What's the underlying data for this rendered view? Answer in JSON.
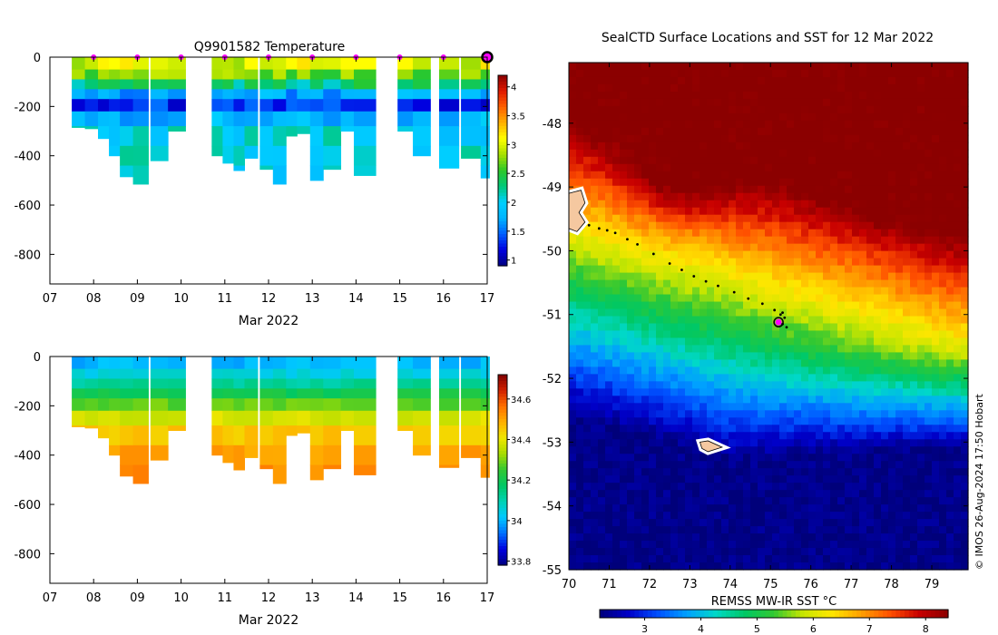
{
  "colors": {
    "sst_palette": [
      "#00007a",
      "#0000c8",
      "#0050ff",
      "#00a0ff",
      "#00d8c8",
      "#00c864",
      "#32c832",
      "#c8e600",
      "#ffe600",
      "#ffa000",
      "#ff5000",
      "#c80000",
      "#8b0000"
    ],
    "temp_palette": [
      "#000080",
      "#0000e0",
      "#0060ff",
      "#00b4ff",
      "#00d0ff",
      "#00c878",
      "#2cc828",
      "#a8e000",
      "#ffff00",
      "#ffb000",
      "#ff6000",
      "#e01800",
      "#8b0000"
    ],
    "sal_palette": [
      "#000080",
      "#0000e0",
      "#0070ff",
      "#00c8ff",
      "#00d2b4",
      "#00c864",
      "#32c832",
      "#a8dc00",
      "#f0e600",
      "#ffb000",
      "#ff7000",
      "#d02000",
      "#800000"
    ],
    "marker": "#ff00ff",
    "land": "#f5c8a0"
  },
  "chart_data": [
    {
      "id": "temperature_section",
      "type": "heatmap",
      "title": "Q9901582  Temperature",
      "xlabel": "Mar 2022",
      "ylabel": "",
      "x_ticks": [
        "07",
        "08",
        "09",
        "10",
        "11",
        "12",
        "13",
        "14",
        "15",
        "16",
        "17"
      ],
      "y_ticks": [
        0,
        -200,
        -400,
        -600,
        -800
      ],
      "xlim": [
        7,
        17
      ],
      "ylim": [
        -920,
        0
      ],
      "colorbar": {
        "ticks": [
          "1",
          "1.5",
          "2",
          "2.5",
          "3",
          "3.5",
          "4"
        ],
        "range": [
          0.9,
          4.2
        ]
      },
      "profile_markers_day": [
        8,
        9,
        10,
        11,
        12,
        13,
        14,
        15,
        16
      ],
      "last_profile_day": 17,
      "profiles": [
        {
          "t": 7.5,
          "w": 0.3,
          "bottom": -285
        },
        {
          "t": 7.8,
          "w": 0.3,
          "bottom": -290
        },
        {
          "t": 8.1,
          "w": 0.3,
          "bottom": -330
        },
        {
          "t": 8.35,
          "w": 0.3,
          "bottom": -400
        },
        {
          "t": 8.6,
          "w": 0.3,
          "bottom": -485
        },
        {
          "t": 8.9,
          "w": 0.35,
          "bottom": -515
        },
        {
          "t": 9.3,
          "w": 0.4,
          "bottom": -420
        },
        {
          "t": 9.7,
          "w": 0.4,
          "bottom": -300
        },
        {
          "t": 10.7,
          "w": 0.25,
          "bottom": -400
        },
        {
          "t": 10.95,
          "w": 0.25,
          "bottom": -430
        },
        {
          "t": 11.2,
          "w": 0.25,
          "bottom": -460
        },
        {
          "t": 11.45,
          "w": 0.3,
          "bottom": -410
        },
        {
          "t": 11.8,
          "w": 0.3,
          "bottom": -455
        },
        {
          "t": 12.1,
          "w": 0.3,
          "bottom": -515
        },
        {
          "t": 12.4,
          "w": 0.25,
          "bottom": -320
        },
        {
          "t": 12.65,
          "w": 0.3,
          "bottom": -310
        },
        {
          "t": 12.95,
          "w": 0.3,
          "bottom": -500
        },
        {
          "t": 13.25,
          "w": 0.4,
          "bottom": -455
        },
        {
          "t": 13.65,
          "w": 0.35,
          "bottom": -300
        },
        {
          "t": 13.95,
          "w": 0.5,
          "bottom": -480
        },
        {
          "t": 14.95,
          "w": 0.35,
          "bottom": -300
        },
        {
          "t": 15.3,
          "w": 0.4,
          "bottom": -400
        },
        {
          "t": 15.9,
          "w": 0.45,
          "bottom": -450
        },
        {
          "t": 16.4,
          "w": 0.45,
          "bottom": -410
        },
        {
          "t": 16.85,
          "w": 0.2,
          "bottom": -490
        }
      ],
      "levels": [
        {
          "depth": -50,
          "temp": 3.0,
          "sal": 34.0
        },
        {
          "depth": -90,
          "temp": 2.7,
          "sal": 34.05
        },
        {
          "depth": -130,
          "temp": 2.3,
          "sal": 34.12
        },
        {
          "depth": -170,
          "temp": 1.7,
          "sal": 34.2
        },
        {
          "depth": -220,
          "temp": 1.3,
          "sal": 34.28
        },
        {
          "depth": -280,
          "temp": 1.8,
          "sal": 34.38
        },
        {
          "depth": -360,
          "temp": 2.0,
          "sal": 34.45
        },
        {
          "depth": -440,
          "temp": 2.0,
          "sal": 34.5
        },
        {
          "depth": -520,
          "temp": 2.0,
          "sal": 34.53
        }
      ]
    },
    {
      "id": "salinity_section",
      "type": "heatmap",
      "title": "",
      "xlabel": "Mar 2022",
      "ylabel": "",
      "x_ticks": [
        "07",
        "08",
        "09",
        "10",
        "11",
        "12",
        "13",
        "14",
        "15",
        "16",
        "17"
      ],
      "y_ticks": [
        0,
        -200,
        -400,
        -600,
        -800
      ],
      "xlim": [
        7,
        17
      ],
      "ylim": [
        -920,
        0
      ],
      "colorbar": {
        "ticks": [
          "33.8",
          "34",
          "34.2",
          "34.4",
          "34.6"
        ],
        "range": [
          33.78,
          34.72
        ]
      }
    },
    {
      "id": "sst_map",
      "type": "heatmap",
      "title": "SealCTD Surface Locations and SST for 12 Mar 2022",
      "xlabel": "",
      "ylabel": "",
      "x_ticks": [
        "70",
        "71",
        "72",
        "73",
        "74",
        "75",
        "76",
        "77",
        "78",
        "79"
      ],
      "y_ticks": [
        "-48",
        "-49",
        "-50",
        "-51",
        "-52",
        "-53",
        "-54",
        "-55"
      ],
      "xlim": [
        70,
        79.9
      ],
      "ylim": [
        -55,
        -47.05
      ],
      "colorbar": {
        "label": "REMSS MW-IR SST °C",
        "ticks": [
          "3",
          "4",
          "5",
          "6",
          "7",
          "8"
        ],
        "range": [
          2.2,
          8.4
        ]
      },
      "track": [
        {
          "lon": 70.5,
          "lat": -49.6
        },
        {
          "lon": 70.75,
          "lat": -49.65
        },
        {
          "lon": 70.95,
          "lat": -49.68
        },
        {
          "lon": 71.15,
          "lat": -49.72
        },
        {
          "lon": 71.45,
          "lat": -49.82
        },
        {
          "lon": 71.7,
          "lat": -49.9
        },
        {
          "lon": 72.1,
          "lat": -50.05
        },
        {
          "lon": 72.5,
          "lat": -50.2
        },
        {
          "lon": 72.8,
          "lat": -50.3
        },
        {
          "lon": 73.1,
          "lat": -50.4
        },
        {
          "lon": 73.4,
          "lat": -50.48
        },
        {
          "lon": 73.7,
          "lat": -50.55
        },
        {
          "lon": 74.1,
          "lat": -50.65
        },
        {
          "lon": 74.45,
          "lat": -50.75
        },
        {
          "lon": 74.8,
          "lat": -50.83
        },
        {
          "lon": 75.1,
          "lat": -50.93
        },
        {
          "lon": 75.25,
          "lat": -51.0
        },
        {
          "lon": 75.35,
          "lat": -51.05
        },
        {
          "lon": 75.2,
          "lat": -51.1
        },
        {
          "lon": 75.3,
          "lat": -51.15
        },
        {
          "lon": 75.4,
          "lat": -51.2
        },
        {
          "lon": 75.3,
          "lat": -50.97
        }
      ],
      "current_position": {
        "lon": 75.2,
        "lat": -51.12
      }
    }
  ],
  "watermark": "© IMOS 26-Aug-2024 17:50 Hobart"
}
